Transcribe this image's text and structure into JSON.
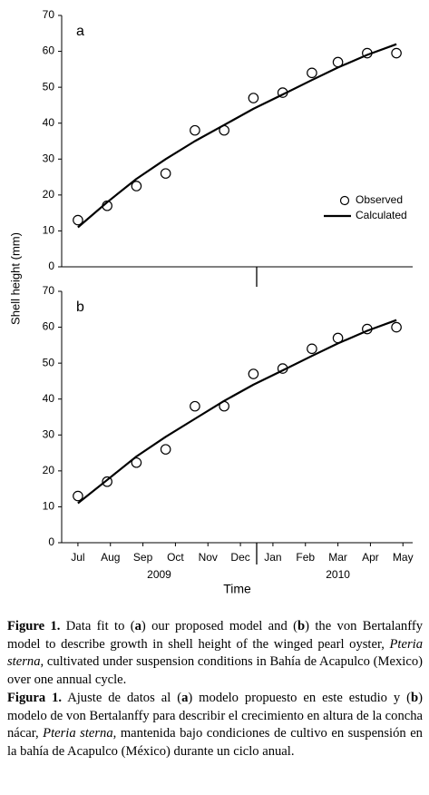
{
  "chart_data": [
    {
      "type": "line",
      "label": "a",
      "ylabel": "Shell height (mm)",
      "xlim": [
        -0.5,
        10.3
      ],
      "ylim": [
        0,
        70
      ],
      "yticks": [
        0,
        10,
        20,
        30,
        40,
        50,
        60,
        70
      ],
      "legend": "right",
      "series": [
        {
          "name": "Observed",
          "mode": "markers",
          "color": "#000000",
          "x": [
            0,
            0.9,
            1.8,
            2.7,
            3.6,
            4.5,
            5.4,
            6.3,
            7.2,
            8.0,
            8.9,
            9.8
          ],
          "values": [
            13,
            17,
            22.5,
            26,
            38,
            38,
            47,
            48.5,
            54,
            57,
            59.5,
            59.5
          ]
        },
        {
          "name": "Calculated",
          "mode": "line",
          "color": "#000000",
          "x": [
            0,
            0.9,
            1.8,
            2.7,
            3.6,
            4.5,
            5.4,
            6.3,
            7.2,
            8.0,
            8.9,
            9.8
          ],
          "values": [
            11,
            18,
            24.5,
            30,
            35,
            39.5,
            44,
            48,
            52,
            55.5,
            59,
            62
          ]
        }
      ]
    },
    {
      "type": "line",
      "label": "b",
      "xlabel": "Time",
      "xlim": [
        -0.5,
        10.3
      ],
      "ylim": [
        0,
        70
      ],
      "yticks": [
        0,
        10,
        20,
        30,
        40,
        50,
        60,
        70
      ],
      "xticks": [
        {
          "value": 0,
          "label": "Jul"
        },
        {
          "value": 1,
          "label": "Aug"
        },
        {
          "value": 2,
          "label": "Sep"
        },
        {
          "value": 3,
          "label": "Oct"
        },
        {
          "value": 4,
          "label": "Nov"
        },
        {
          "value": 5,
          "label": "Dec"
        },
        {
          "value": 6,
          "label": "Jan"
        },
        {
          "value": 7,
          "label": "Feb"
        },
        {
          "value": 8,
          "label": "Mar"
        },
        {
          "value": 9,
          "label": "Apr"
        },
        {
          "value": 10,
          "label": "May"
        }
      ],
      "x_groups": [
        {
          "label": "2009",
          "from": 0,
          "to": 5
        },
        {
          "label": "2010",
          "from": 6,
          "to": 10
        }
      ],
      "series": [
        {
          "mode": "markers",
          "color": "#000000",
          "x": [
            0,
            0.9,
            1.8,
            2.7,
            3.6,
            4.5,
            5.4,
            6.3,
            7.2,
            8.0,
            8.9,
            9.8
          ],
          "values": [
            13,
            17,
            22.3,
            26,
            38,
            38,
            47,
            48.5,
            54,
            57,
            59.5,
            60
          ]
        },
        {
          "mode": "line",
          "color": "#000000",
          "x": [
            0,
            0.9,
            1.8,
            2.7,
            3.6,
            4.5,
            5.4,
            6.3,
            7.2,
            8.0,
            8.9,
            9.8
          ],
          "values": [
            11,
            17.5,
            24,
            29.5,
            34.5,
            39.5,
            44,
            48,
            52,
            55.5,
            59,
            62
          ]
        }
      ]
    }
  ],
  "caption": {
    "english": [
      "Figure 1.",
      " Data fit to (",
      "a",
      ") our proposed model and (",
      "b",
      ") the von Bertalanffy model to describe growth in shell height of the winged pearl oyster, ",
      "Pteria sterna",
      ", cultivated under suspension conditions in Bahía de Acapulco (Mexico) over one annual cycle."
    ],
    "spanish": [
      "Figura 1.",
      " Ajuste de datos al (",
      "a",
      ") modelo propuesto en este estudio y (",
      "b",
      ") modelo de von Bertalanffy para describir el crecimiento en altura de la concha nácar, ",
      "Pteria sterna",
      ", mantenida bajo condiciones de cultivo en suspensión en la bahía de Acapulco (México) durante un ciclo anual."
    ]
  }
}
